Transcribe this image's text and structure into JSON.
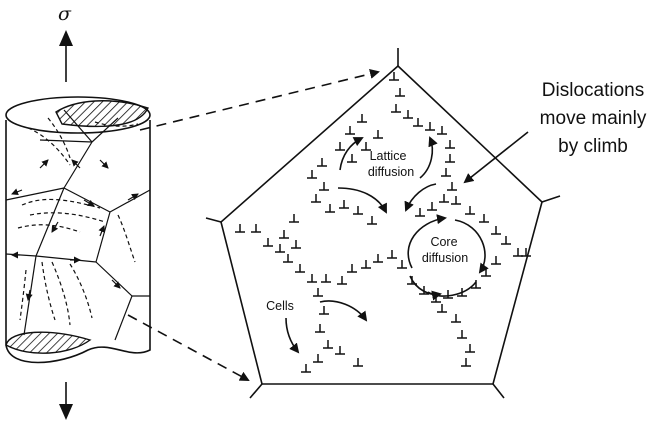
{
  "stress_symbol": "σ",
  "labels": {
    "dislocations_line1": "Dislocations",
    "dislocations_line2": "move mainly",
    "dislocations_line3": "by climb",
    "lattice_line1": "Lattice",
    "lattice_line2": "diffusion",
    "core_line1": "Core",
    "core_line2": "diffusion",
    "cells": "Cells"
  },
  "colors": {
    "ink": "#111111",
    "background": "#ffffff"
  },
  "icons": {
    "dislocation": "inverted-T dislocation symbol",
    "arrow": "curved arrow"
  }
}
